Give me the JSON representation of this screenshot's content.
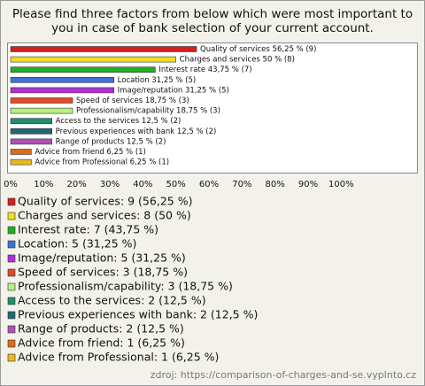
{
  "chart_data": {
    "type": "barh",
    "title": "Please find three factors from below which were most important to you in case of bank selection of your current account.",
    "categories": [
      "Quality of services",
      "Charges and services",
      "Interest rate",
      "Location",
      "Image/reputation",
      "Speed of services",
      "Professionalism/capability",
      "Access to the services",
      "Previous experiences with bank",
      "Range of products",
      "Advice from friend",
      "Advice from Professional"
    ],
    "values": [
      56.25,
      50,
      43.75,
      31.25,
      31.25,
      18.75,
      18.75,
      12.5,
      12.5,
      12.5,
      6.25,
      6.25
    ],
    "value_labels": [
      "Quality of services 56,25 % (9)",
      "Charges and services 50 % (8)",
      "Interest rate 43,75 % (7)",
      "Location 31,25 % (5)",
      "Image/reputation 31,25 % (5)",
      "Speed of services 18,75 % (3)",
      "Professionalism/capability 18,75 % (3)",
      "Access to the services 12,5 % (2)",
      "Previous experiences with bank 12,5 % (2)",
      "Range of products 12,5 % (2)",
      "Advice from friend 6,25 % (1)",
      "Advice from Professional 6,25 % (1)"
    ],
    "legend": [
      "Quality of services: 9 (56,25 %)",
      "Charges and services: 8 (50 %)",
      "Interest rate: 7 (43,75 %)",
      "Location: 5 (31,25 %)",
      "Image/reputation: 5 (31,25 %)",
      "Speed of services: 3 (18,75 %)",
      "Professionalism/capability: 3 (18,75 %)",
      "Access to the services: 2 (12,5 %)",
      "Previous experiences with bank: 2 (12,5 %)",
      "Range of products: 2 (12,5 %)",
      "Advice from friend: 1 (6,25 %)",
      "Advice from Professional: 1 (6,25 %)"
    ],
    "colors": [
      "#d42020",
      "#f0e020",
      "#22b022",
      "#4070d8",
      "#b030d0",
      "#e04a28",
      "#b8f080",
      "#20906a",
      "#206878",
      "#b050b8",
      "#e06a18",
      "#e8b820"
    ],
    "xlim": [
      0,
      120
    ],
    "xticks": [
      {
        "value": 0,
        "label": "0%"
      },
      {
        "value": 10,
        "label": "10%"
      },
      {
        "value": 20,
        "label": "20%"
      },
      {
        "value": 30,
        "label": "30%"
      },
      {
        "value": 40,
        "label": "40%"
      },
      {
        "value": 50,
        "label": "50%"
      },
      {
        "value": 60,
        "label": "60%"
      },
      {
        "value": 70,
        "label": "70%"
      },
      {
        "value": 80,
        "label": "80%"
      },
      {
        "value": 90,
        "label": "90%"
      },
      {
        "value": 100,
        "label": "100%"
      }
    ],
    "source": "zdroj: https://comparison-of-charges-and-se.vyplnto.cz"
  }
}
